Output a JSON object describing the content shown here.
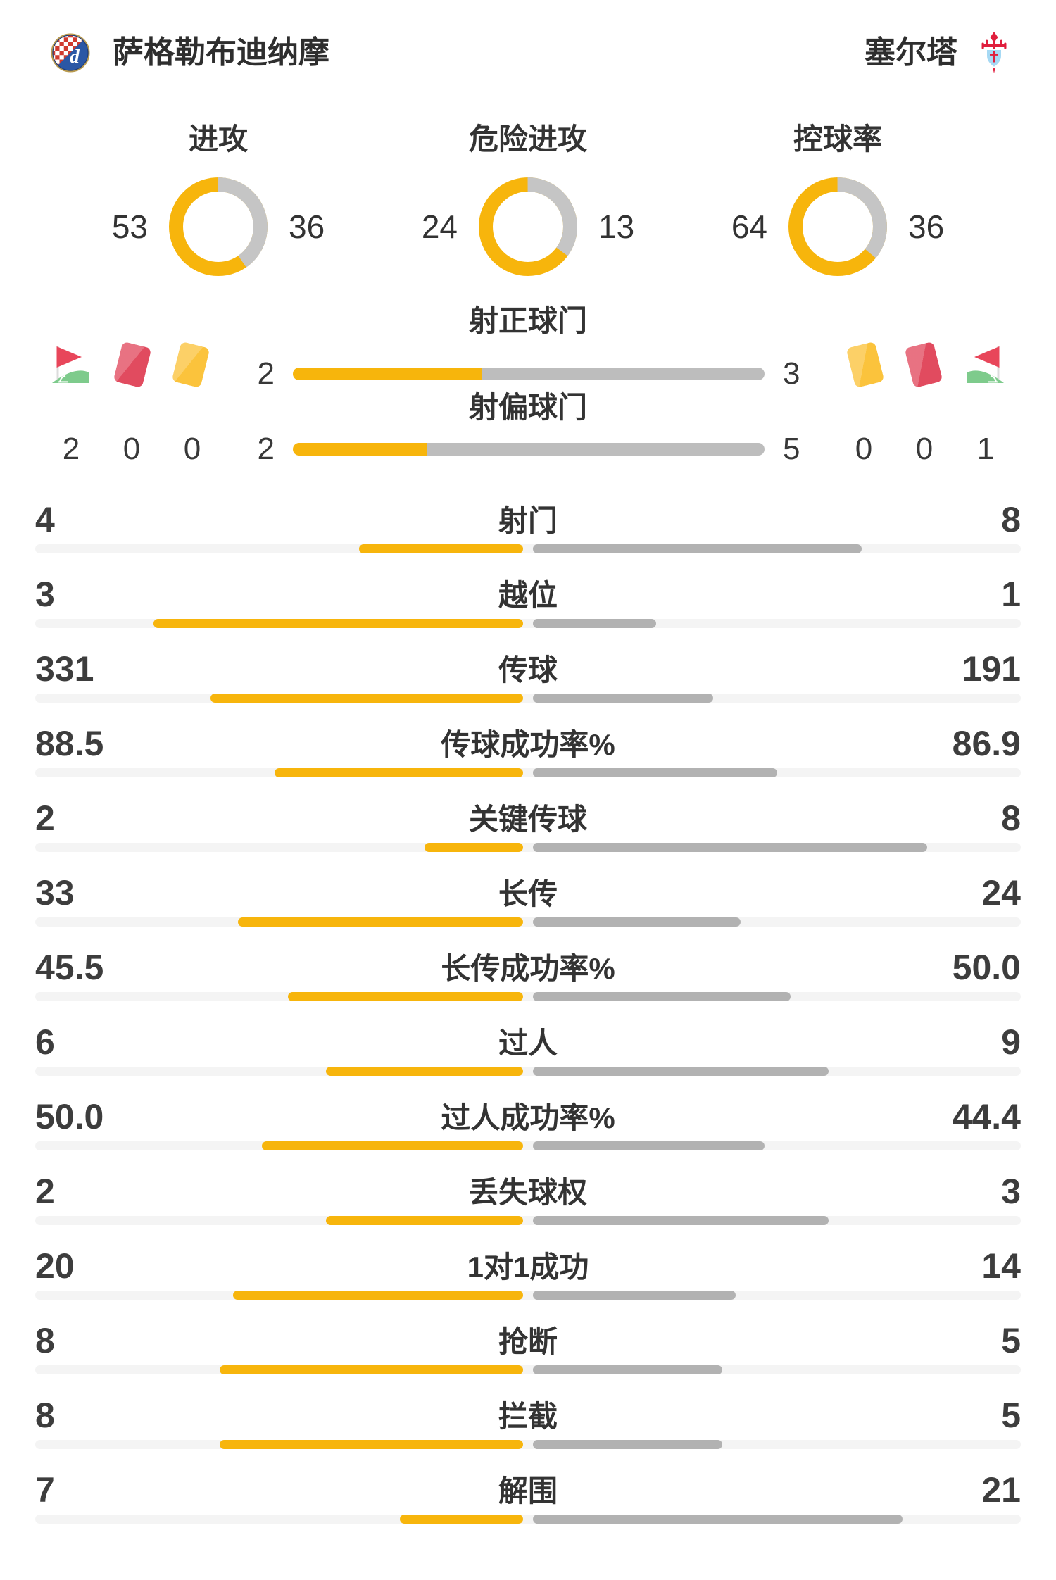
{
  "header": {
    "home_team": "萨格勒布迪纳摩",
    "away_team": "塞尔塔"
  },
  "donuts": [
    {
      "label": "进攻",
      "home": 53,
      "away": 36
    },
    {
      "label": "危险进攻",
      "home": 24,
      "away": 13
    },
    {
      "label": "控球率",
      "home": 64,
      "away": 36
    }
  ],
  "shots": [
    {
      "label": "射正球门",
      "home": 2,
      "away": 3
    },
    {
      "label": "射偏球门",
      "home": 2,
      "away": 5
    }
  ],
  "cards": {
    "home": {
      "corner": 2,
      "red": 0,
      "yellow": 0
    },
    "away": {
      "yellow": 0,
      "red": 0,
      "corner": 1
    }
  },
  "stats": [
    {
      "label": "射门",
      "home": "4",
      "away": "8"
    },
    {
      "label": "越位",
      "home": "3",
      "away": "1"
    },
    {
      "label": "传球",
      "home": "331",
      "away": "191"
    },
    {
      "label": "传球成功率%",
      "home": "88.5",
      "away": "86.9"
    },
    {
      "label": "关键传球",
      "home": "2",
      "away": "8"
    },
    {
      "label": "长传",
      "home": "33",
      "away": "24"
    },
    {
      "label": "长传成功率%",
      "home": "45.5",
      "away": "50.0"
    },
    {
      "label": "过人",
      "home": "6",
      "away": "9"
    },
    {
      "label": "过人成功率%",
      "home": "50.0",
      "away": "44.4"
    },
    {
      "label": "丢失球权",
      "home": "2",
      "away": "3"
    },
    {
      "label": "1对1成功",
      "home": "20",
      "away": "14"
    },
    {
      "label": "抢断",
      "home": "8",
      "away": "5"
    },
    {
      "label": "拦截",
      "home": "8",
      "away": "5"
    },
    {
      "label": "解围",
      "home": "7",
      "away": "21"
    }
  ],
  "colors": {
    "accent_yellow": "#F7B50C",
    "stats_away_gray": "#B2B2B2",
    "donut_gray": "#C5C5C5",
    "shots_away_gray": "#BDBDBD",
    "track_gray": "#F4F4F4",
    "text_dark": "#333333",
    "red_card": "#E14B5F",
    "yellow_card": "#FBC33C",
    "flag_red": "#E8465A",
    "grass_green": "#7ECB8C"
  }
}
